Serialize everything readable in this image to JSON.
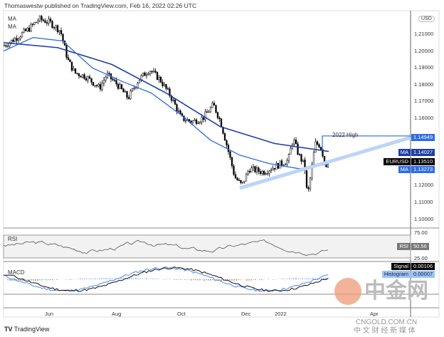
{
  "header": {
    "publisher": "Thomaswestw published on TradingView.com, Feb 16, 2022 02:26 UTC"
  },
  "legend": {
    "ma1": "MA",
    "ma2": "MA",
    "rsi": "RSI",
    "macd": "MACD"
  },
  "currency": "USD",
  "annotation": "2022 High",
  "price_tags": {
    "high": "1.14949",
    "ma_slow_label": "MA",
    "ma_slow": "1.14027",
    "symbol": "EURUSD",
    "last": "1.13510",
    "ma_fast_label": "MA",
    "ma_fast": "1.13273"
  },
  "rsi_tag": {
    "label": "RSI",
    "value": "50.56"
  },
  "macd_tags": {
    "signal_label": "Signal",
    "signal": "0.00106",
    "hist_label": "Histogram",
    "hist": "0.00007"
  },
  "footer": {
    "brand": "TradingView"
  },
  "watermark": {
    "main": "中金网",
    "url": "CNGOLD.COM.CN",
    "sub": "中 文 财 经 新 媒 体"
  },
  "colors": {
    "ma_slow": "#1b3fa6",
    "ma_fast": "#2e6be6",
    "trendline": "#bcd4f7",
    "candle": "#000000",
    "rsi": "#555555",
    "macd": "#111111",
    "signal": "#4a8af0"
  },
  "chart_data": {
    "type": "candlestick",
    "symbol": "EURUSD",
    "y_ticks": [
      "1.21000",
      "1.20000",
      "1.19000",
      "1.18000",
      "1.17000",
      "1.16000",
      "1.12000",
      "1.11000",
      "1.10000"
    ],
    "ylim": [
      1.098,
      1.222
    ],
    "x_ticks": [
      "Jun",
      "Aug",
      "Oct",
      "Dec",
      "2022",
      "Apr"
    ],
    "price_path": [
      1.203,
      1.207,
      1.213,
      1.219,
      1.217,
      1.212,
      1.195,
      1.187,
      1.185,
      1.178,
      1.186,
      1.18,
      1.172,
      1.183,
      1.189,
      1.183,
      1.173,
      1.16,
      1.158,
      1.16,
      1.168,
      1.158,
      1.142,
      1.125,
      1.12,
      1.13,
      1.128,
      1.132,
      1.135,
      1.148,
      1.138,
      1.132,
      1.113,
      1.127,
      1.145,
      1.144,
      1.132,
      1.135
    ],
    "ma_slow": [
      1.205,
      1.202,
      1.192,
      1.175,
      1.155,
      1.145,
      1.14027
    ],
    "ma_fast": [
      1.2,
      1.208,
      1.206,
      1.19,
      1.182,
      1.175,
      1.162,
      1.147,
      1.138,
      1.133,
      1.13,
      1.13273
    ],
    "rsi_ticks": [
      "75.00",
      "25.00"
    ],
    "rsi_last": 50.56,
    "macd_signal": 0.00106,
    "macd_histogram": 7e-05,
    "high_2022": 1.14949
  }
}
